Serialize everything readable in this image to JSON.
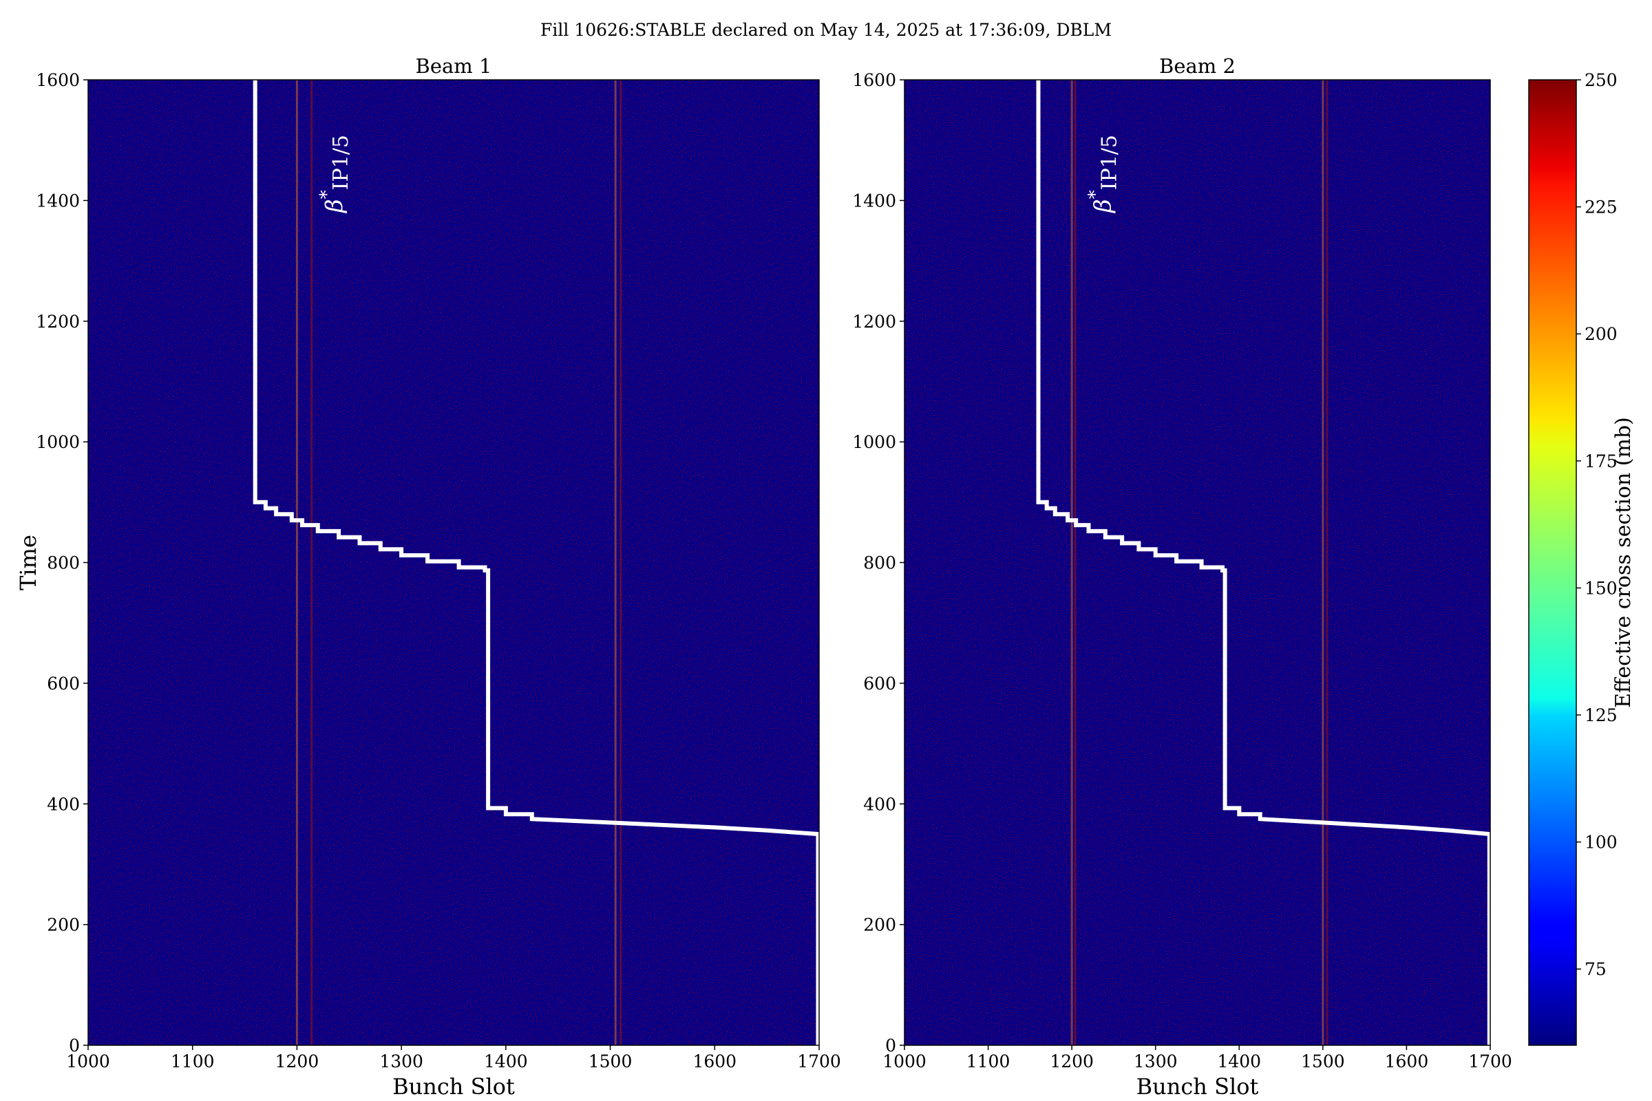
{
  "figure": {
    "title": "Fill 10626:STABLE declared on May 14, 2025 at 17:36:09, DBLM"
  },
  "chart_data": [
    {
      "type": "heatmap",
      "subtitle": "Beam 1",
      "xlabel": "Bunch Slot",
      "ylabel": "Time",
      "xlim": [
        1000,
        1700
      ],
      "ylim": [
        0,
        1600
      ],
      "xticks": [
        1000,
        1100,
        1200,
        1300,
        1400,
        1500,
        1600,
        1700
      ],
      "yticks": [
        0,
        200,
        400,
        600,
        800,
        1000,
        1200,
        1400,
        1600
      ],
      "colormap": "jet",
      "color_range": [
        60,
        250
      ],
      "dominant_colors": [
        "#7f0000",
        "#00008b"
      ],
      "stripes_bunch_slots": [
        1200,
        1214,
        1505,
        1510
      ],
      "annotation": {
        "base": "β",
        "sup": "*",
        "sub": "IP1/5",
        "x": 1230,
        "y": 1380
      },
      "step_line": [
        [
          1160,
          1600
        ],
        [
          1160,
          900
        ],
        [
          1170,
          900
        ],
        [
          1170,
          890
        ],
        [
          1180,
          890
        ],
        [
          1180,
          880
        ],
        [
          1195,
          880
        ],
        [
          1195,
          870
        ],
        [
          1205,
          870
        ],
        [
          1205,
          862
        ],
        [
          1220,
          862
        ],
        [
          1220,
          852
        ],
        [
          1240,
          852
        ],
        [
          1240,
          842
        ],
        [
          1260,
          842
        ],
        [
          1260,
          832
        ],
        [
          1280,
          832
        ],
        [
          1280,
          822
        ],
        [
          1300,
          822
        ],
        [
          1300,
          812
        ],
        [
          1325,
          812
        ],
        [
          1325,
          802
        ],
        [
          1355,
          802
        ],
        [
          1355,
          792
        ],
        [
          1380,
          792
        ],
        [
          1380,
          787
        ],
        [
          1383,
          787
        ],
        [
          1383,
          393
        ],
        [
          1400,
          393
        ],
        [
          1400,
          383
        ],
        [
          1425,
          383
        ],
        [
          1425,
          375
        ],
        [
          1450,
          373
        ],
        [
          1500,
          369
        ],
        [
          1550,
          365
        ],
        [
          1600,
          361
        ],
        [
          1650,
          356
        ],
        [
          1699,
          350
        ],
        [
          1699,
          0
        ]
      ]
    },
    {
      "type": "heatmap",
      "subtitle": "Beam 2",
      "xlabel": "Bunch Slot",
      "ylabel": "",
      "xlim": [
        1000,
        1700
      ],
      "ylim": [
        0,
        1600
      ],
      "xticks": [
        1000,
        1100,
        1200,
        1300,
        1400,
        1500,
        1600,
        1700
      ],
      "yticks": [
        0,
        200,
        400,
        600,
        800,
        1000,
        1200,
        1400,
        1600
      ],
      "colormap": "jet",
      "color_range": [
        60,
        250
      ],
      "dominant_colors": [
        "#7f0000",
        "#00008b"
      ],
      "stripes_bunch_slots": [
        1200,
        1204,
        1500,
        1505
      ],
      "annotation": {
        "base": "β",
        "sup": "*",
        "sub": "IP1/5",
        "x": 1230,
        "y": 1380
      },
      "step_line": [
        [
          1160,
          1600
        ],
        [
          1160,
          900
        ],
        [
          1170,
          900
        ],
        [
          1170,
          890
        ],
        [
          1180,
          890
        ],
        [
          1180,
          880
        ],
        [
          1195,
          880
        ],
        [
          1195,
          870
        ],
        [
          1205,
          870
        ],
        [
          1205,
          862
        ],
        [
          1220,
          862
        ],
        [
          1220,
          852
        ],
        [
          1240,
          852
        ],
        [
          1240,
          842
        ],
        [
          1260,
          842
        ],
        [
          1260,
          832
        ],
        [
          1280,
          832
        ],
        [
          1280,
          822
        ],
        [
          1300,
          822
        ],
        [
          1300,
          812
        ],
        [
          1325,
          812
        ],
        [
          1325,
          802
        ],
        [
          1355,
          802
        ],
        [
          1355,
          792
        ],
        [
          1380,
          792
        ],
        [
          1380,
          787
        ],
        [
          1383,
          787
        ],
        [
          1383,
          393
        ],
        [
          1400,
          393
        ],
        [
          1400,
          383
        ],
        [
          1425,
          383
        ],
        [
          1425,
          375
        ],
        [
          1450,
          373
        ],
        [
          1500,
          369
        ],
        [
          1550,
          365
        ],
        [
          1600,
          361
        ],
        [
          1650,
          356
        ],
        [
          1699,
          350
        ],
        [
          1699,
          0
        ]
      ]
    }
  ],
  "colorbar": {
    "label": "Effective cross section (mb)",
    "colormap": "jet",
    "range": [
      60,
      250
    ],
    "ticks": [
      75,
      100,
      125,
      150,
      175,
      200,
      225,
      250
    ]
  }
}
